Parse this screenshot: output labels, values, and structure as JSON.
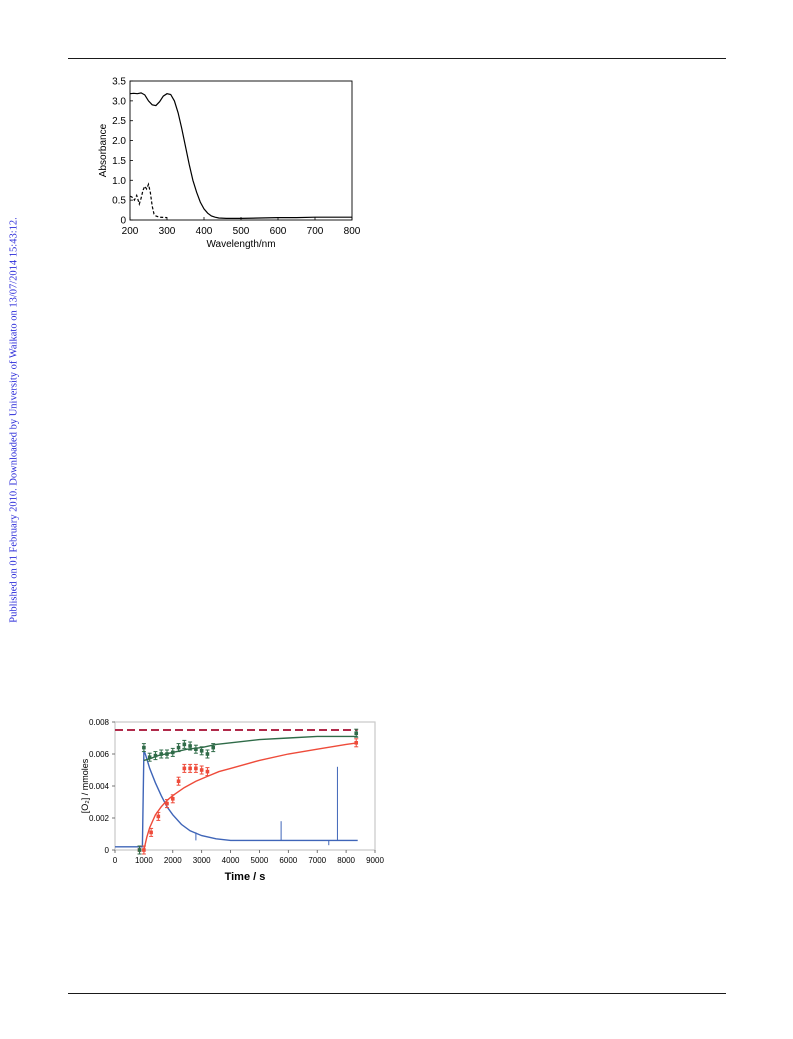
{
  "sidebar_note": "Published on 01 February 2010. Downloaded by University of Waikato on 13/07/2014 15:43:12.",
  "chart_data": [
    {
      "type": "line",
      "title": "",
      "xlabel": "Wavelength/nm",
      "ylabel": "Absorbance",
      "xlim": [
        200,
        800
      ],
      "ylim": [
        0,
        3.5
      ],
      "x_ticks": [
        "200",
        "300",
        "400",
        "500",
        "600",
        "700",
        "800"
      ],
      "y_ticks": [
        "0",
        "0.5",
        "1.0",
        "1.5",
        "2.0",
        "2.5",
        "3.0",
        "3.5"
      ],
      "grid": false,
      "series": [
        {
          "style": "solid",
          "color": "#000000",
          "x": [
            200,
            210,
            220,
            230,
            240,
            250,
            260,
            270,
            280,
            290,
            300,
            310,
            320,
            330,
            340,
            350,
            360,
            370,
            380,
            390,
            400,
            410,
            420,
            430,
            440,
            460,
            480,
            500,
            550,
            600,
            650,
            700,
            750,
            800
          ],
          "y": [
            3.18,
            3.19,
            3.18,
            3.2,
            3.15,
            3.0,
            2.9,
            2.88,
            2.98,
            3.12,
            3.18,
            3.16,
            3.0,
            2.7,
            2.3,
            1.85,
            1.4,
            1.0,
            0.7,
            0.45,
            0.28,
            0.17,
            0.1,
            0.07,
            0.05,
            0.04,
            0.04,
            0.04,
            0.05,
            0.06,
            0.06,
            0.07,
            0.07,
            0.07
          ]
        },
        {
          "style": "dashed",
          "color": "#000000",
          "x": [
            200,
            205,
            212,
            218,
            225,
            230,
            235,
            240,
            245,
            250,
            255,
            260,
            265,
            270,
            280,
            300
          ],
          "y": [
            0.6,
            0.58,
            0.5,
            0.62,
            0.4,
            0.55,
            0.75,
            0.85,
            0.78,
            0.9,
            0.7,
            0.35,
            0.15,
            0.1,
            0.07,
            0.06
          ]
        }
      ]
    },
    {
      "type": "line",
      "title": "",
      "xlabel": "Time / s",
      "ylabel": "[O₂] / mmoles",
      "xlim": [
        0,
        9000
      ],
      "ylim": [
        0,
        0.008
      ],
      "x_ticks": [
        "0",
        "1000",
        "2000",
        "3000",
        "4000",
        "5000",
        "6000",
        "7000",
        "8000",
        "9000"
      ],
      "y_ticks": [
        "0",
        "0.002",
        "0.004",
        "0.006",
        "0.008"
      ],
      "grid": false,
      "colors": {
        "blue": "#3f65b8",
        "red": "#ee4b3a",
        "green": "#2f6b48",
        "dashed": "#b02a4a",
        "frame": "#c9c9c9"
      },
      "series": [
        {
          "style": "dashed",
          "color": "#b02a4a",
          "x": [
            0,
            8400
          ],
          "y": [
            0.0075,
            0.0075
          ]
        },
        {
          "style": "line",
          "color": "#3f65b8",
          "x": [
            0,
            800,
            950,
            1000,
            1050,
            1100,
            1200,
            1400,
            1600,
            1800,
            2000,
            2300,
            2600,
            3000,
            3500,
            4000,
            4500,
            5000,
            6000,
            7000,
            8000,
            8400
          ],
          "y": [
            0.0002,
            0.0002,
            0.0002,
            0.0062,
            0.006,
            0.0057,
            0.0051,
            0.0042,
            0.0034,
            0.0027,
            0.0022,
            0.0016,
            0.0012,
            0.0009,
            0.0007,
            0.0006,
            0.0006,
            0.0006,
            0.0006,
            0.0006,
            0.0006,
            0.0006
          ]
        },
        {
          "style": "line",
          "color": "#ee4b3a",
          "x": [
            1000,
            1100,
            1200,
            1400,
            1600,
            1800,
            2000,
            2400,
            2800,
            3200,
            3600,
            4000,
            5000,
            6000,
            7000,
            8000,
            8400
          ],
          "y": [
            0,
            0.0008,
            0.0014,
            0.0022,
            0.0027,
            0.0031,
            0.0034,
            0.0039,
            0.0043,
            0.0046,
            0.0049,
            0.0051,
            0.0056,
            0.006,
            0.0063,
            0.0066,
            0.0067
          ]
        },
        {
          "style": "line",
          "color": "#2f6b48",
          "x": [
            1000,
            1200,
            1500,
            2000,
            2500,
            3000,
            3500,
            4000,
            5000,
            6000,
            7000,
            8000,
            8400
          ],
          "y": [
            0.0056,
            0.0057,
            0.0059,
            0.0061,
            0.0063,
            0.0064,
            0.0066,
            0.0067,
            0.0069,
            0.007,
            0.0071,
            0.0071,
            0.0071
          ]
        },
        {
          "style": "points",
          "color": "#ee4b3a",
          "x": [
            850,
            1000,
            1250,
            1500,
            1800,
            2000,
            2200,
            2400,
            2600,
            2800,
            3000,
            3200,
            8350
          ],
          "y": [
            0,
            0,
            0.0011,
            0.0021,
            0.0029,
            0.0032,
            0.0043,
            0.0051,
            0.0051,
            0.0051,
            0.005,
            0.0049,
            0.0067
          ]
        },
        {
          "style": "points",
          "color": "#2f6b48",
          "x": [
            850,
            1000,
            1200,
            1400,
            1600,
            1800,
            2000,
            2200,
            2400,
            2600,
            2800,
            3000,
            3200,
            3400,
            8350
          ],
          "y": [
            0,
            0.0064,
            0.0058,
            0.0059,
            0.006,
            0.006,
            0.0061,
            0.0064,
            0.0066,
            0.0065,
            0.0063,
            0.0062,
            0.006,
            0.0064,
            0.0073
          ]
        }
      ]
    }
  ]
}
